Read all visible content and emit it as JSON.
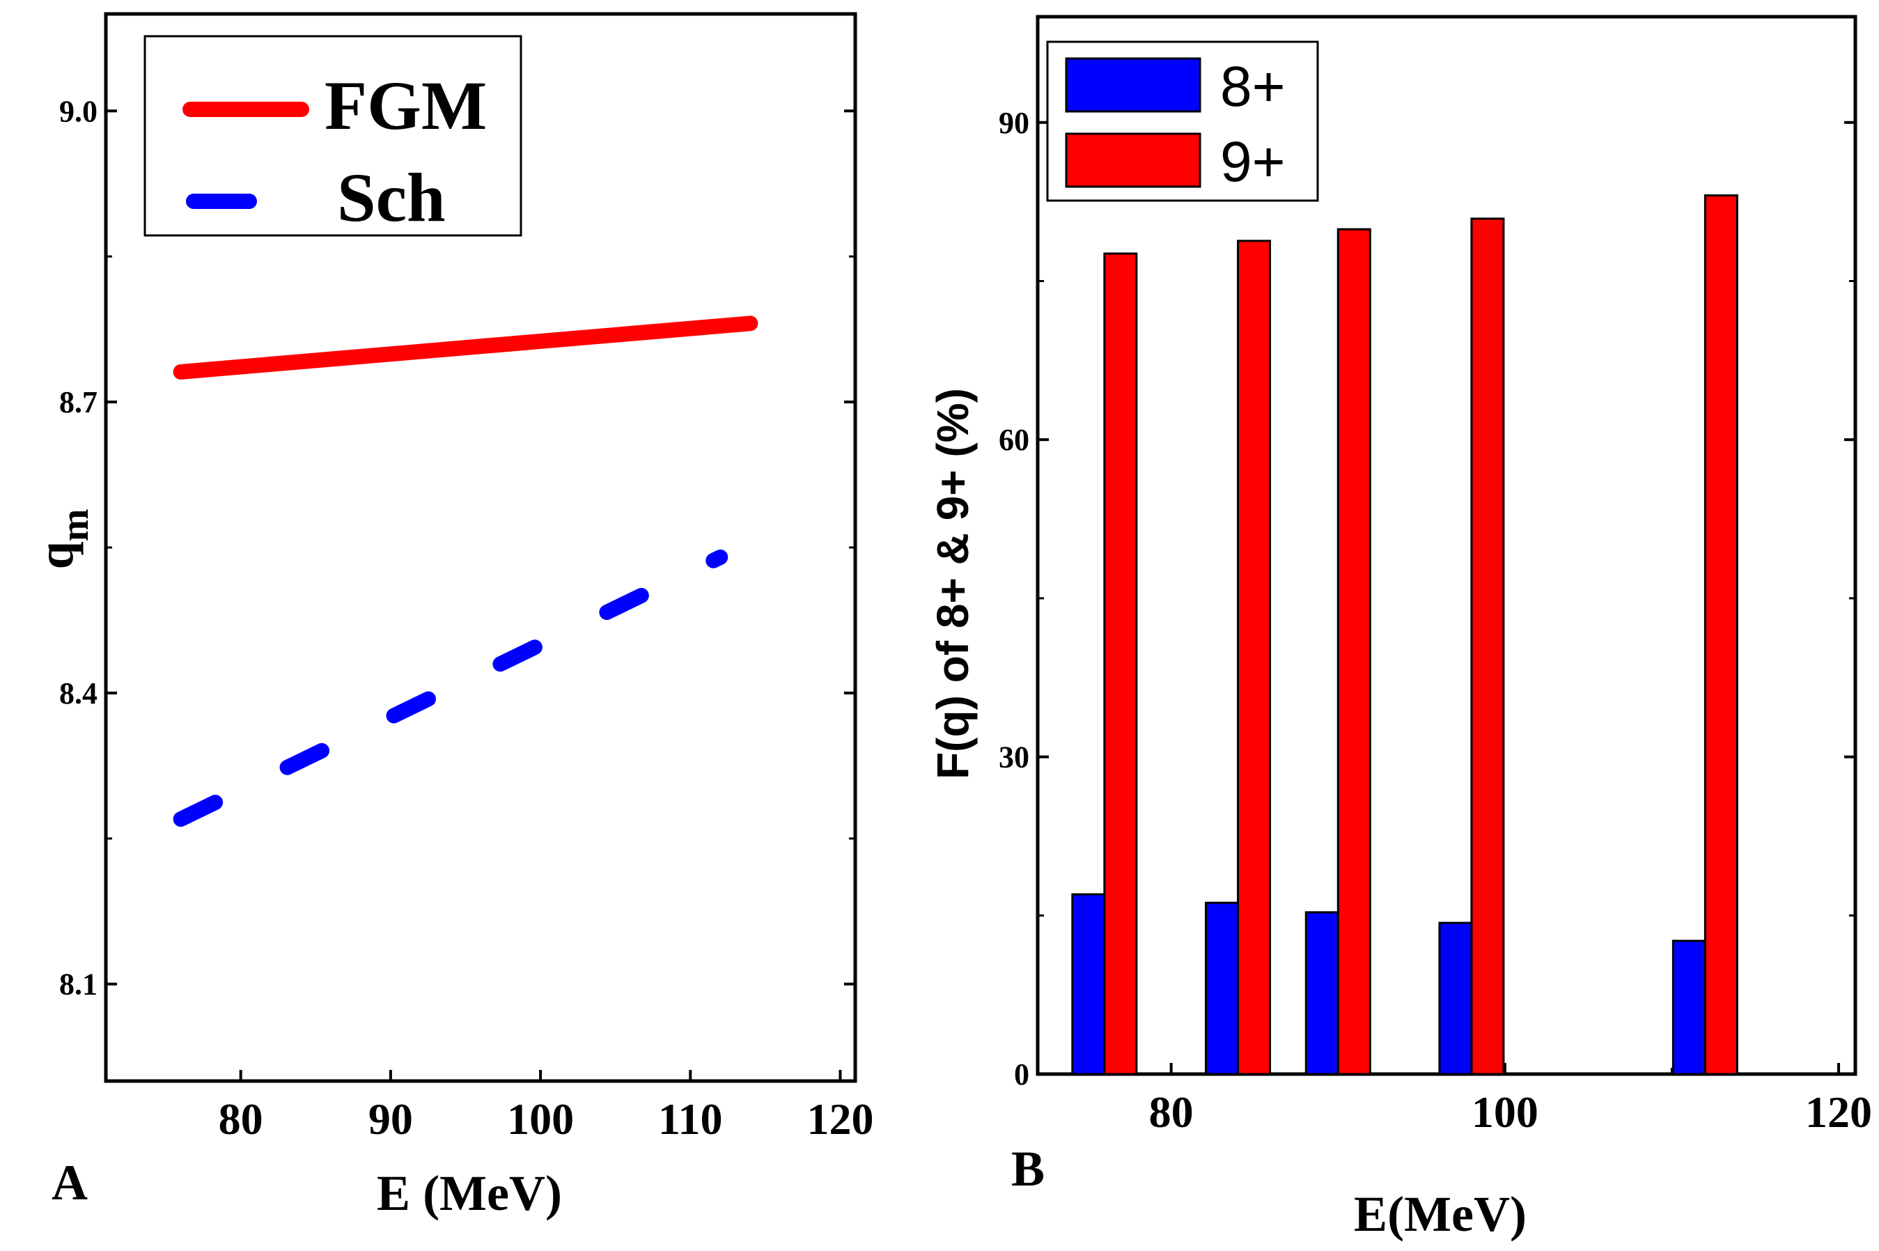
{
  "chart_data": [
    {
      "panel_label": "A",
      "type": "line",
      "xlabel": "E (MeV)",
      "ylabel_main": "q",
      "ylabel_sub": "m",
      "xlim": [
        71,
        121
      ],
      "ylim": [
        8.0,
        9.1
      ],
      "xticks": [
        80,
        90,
        100,
        110,
        120
      ],
      "xtick_labels": [
        "80",
        "90",
        "100",
        "110",
        "120"
      ],
      "yticks": [
        8.1,
        8.4,
        8.7,
        9.0
      ],
      "ytick_labels": [
        "8.1",
        "8.4",
        "8.7",
        "9.0"
      ],
      "series": [
        {
          "name": "FGM",
          "style": "solid",
          "color": "#ff0000",
          "x": [
            76,
            114
          ],
          "y": [
            8.731,
            8.781
          ]
        },
        {
          "name": "Sch",
          "style": "dashed",
          "color": "#0000ff",
          "x": [
            76,
            112
          ],
          "y": [
            8.27,
            8.54
          ]
        }
      ]
    },
    {
      "panel_label": "B",
      "type": "bar",
      "xlabel": "E(MeV)",
      "ylabel": "F(q) of 8+ & 9+ (%)",
      "xlim": [
        72,
        121
      ],
      "ylim": [
        0,
        100
      ],
      "xticks": [
        80,
        100,
        120
      ],
      "xtick_labels": [
        "80",
        "100",
        "120"
      ],
      "yticks": [
        0,
        30,
        60,
        90
      ],
      "ytick_labels": [
        "0",
        "30",
        "60",
        "90"
      ],
      "x": [
        76,
        84,
        90,
        98,
        112
      ],
      "series": [
        {
          "name": "8+",
          "color": "#0000ff",
          "values": [
            17,
            16.2,
            15.3,
            14.3,
            12.6
          ]
        },
        {
          "name": "9+",
          "color": "#ff0000",
          "values": [
            77.6,
            78.8,
            79.9,
            80.9,
            83.1
          ]
        }
      ]
    }
  ]
}
